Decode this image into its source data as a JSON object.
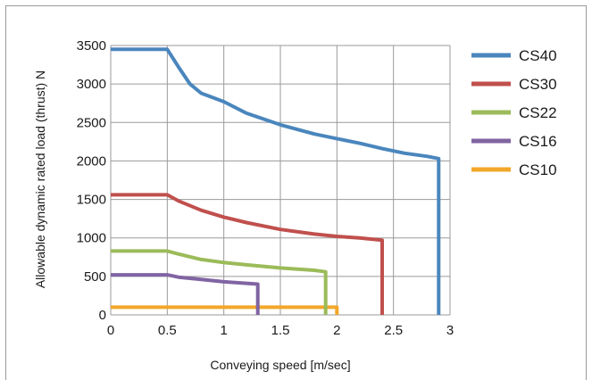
{
  "chart_data": {
    "type": "line",
    "xlabel": "Conveying speed [m/sec]",
    "ylabel": "Allowable dynamic rated load (thrust) N",
    "xlim": [
      0,
      3
    ],
    "ylim": [
      0,
      3500
    ],
    "xticks": [
      0,
      0.5,
      1,
      1.5,
      2,
      2.5,
      3
    ],
    "xtick_labels": [
      "0",
      "0.5",
      "1",
      "1.5",
      "2",
      "2.5",
      "3"
    ],
    "yticks": [
      0,
      500,
      1000,
      1500,
      2000,
      2500,
      3000,
      3500
    ],
    "ytick_labels": [
      "0",
      "500",
      "1000",
      "1500",
      "2000",
      "2500",
      "3000",
      "3500"
    ],
    "grid": true,
    "legend_position": "right",
    "series": [
      {
        "name": "CS40",
        "color": "#4a86bd",
        "x": [
          0,
          0.5,
          0.6,
          0.7,
          0.8,
          1.0,
          1.2,
          1.5,
          1.8,
          2.0,
          2.2,
          2.4,
          2.6,
          2.8,
          2.9,
          2.9
        ],
        "y": [
          3450,
          3450,
          3220,
          3000,
          2880,
          2770,
          2620,
          2470,
          2350,
          2290,
          2230,
          2160,
          2100,
          2060,
          2030,
          0
        ]
      },
      {
        "name": "CS30",
        "color": "#c0504d",
        "x": [
          0,
          0.5,
          0.6,
          0.8,
          1.0,
          1.2,
          1.5,
          1.8,
          2.0,
          2.2,
          2.4,
          2.4
        ],
        "y": [
          1560,
          1560,
          1480,
          1360,
          1270,
          1200,
          1110,
          1050,
          1020,
          1000,
          970,
          0
        ]
      },
      {
        "name": "CS22",
        "color": "#9bbb59",
        "x": [
          0,
          0.5,
          0.6,
          0.8,
          1.0,
          1.2,
          1.5,
          1.8,
          1.9,
          1.9
        ],
        "y": [
          830,
          830,
          790,
          720,
          680,
          650,
          610,
          580,
          560,
          0
        ]
      },
      {
        "name": "CS16",
        "color": "#8064a2",
        "x": [
          0,
          0.5,
          0.6,
          0.8,
          1.0,
          1.2,
          1.3,
          1.3
        ],
        "y": [
          520,
          520,
          490,
          460,
          430,
          410,
          400,
          0
        ]
      },
      {
        "name": "CS10",
        "color": "#f2a72a",
        "x": [
          0,
          2.0,
          2.0
        ],
        "y": [
          100,
          100,
          0
        ]
      }
    ]
  }
}
